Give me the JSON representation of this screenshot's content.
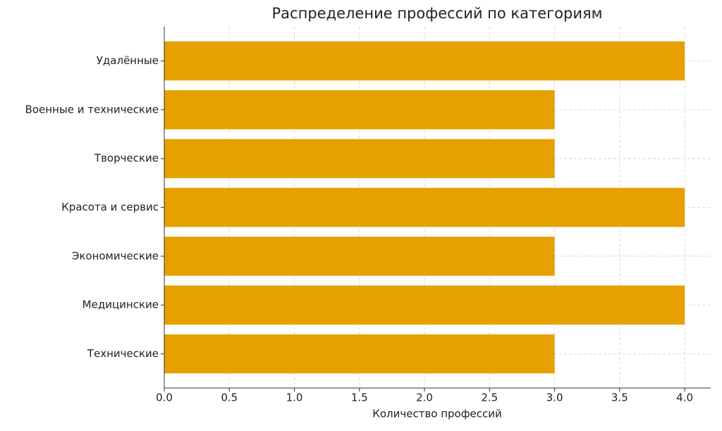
{
  "chart_data": {
    "type": "barh",
    "title": "Распределение профессий по категориям",
    "x_label": "Количество профессий",
    "categories": [
      "Технические",
      "Медицинские",
      "Экономические",
      "Красота и сервис",
      "Творческие",
      "Военные и технические",
      "Удалённые"
    ],
    "values": [
      3,
      4,
      3,
      4,
      3,
      3,
      4
    ],
    "color": "#e6a000",
    "xlim": [
      0,
      4.2
    ],
    "xticks": [
      {
        "value": 0,
        "label": "0.0"
      },
      0.5,
      {
        "value": 1,
        "label": "1.0"
      },
      1.5,
      {
        "value": 2,
        "label": "2.0"
      },
      2.5,
      {
        "value": 3,
        "label": "3.0"
      },
      3.5,
      {
        "value": 4,
        "label": "4.0"
      }
    ],
    "grid": true
  }
}
